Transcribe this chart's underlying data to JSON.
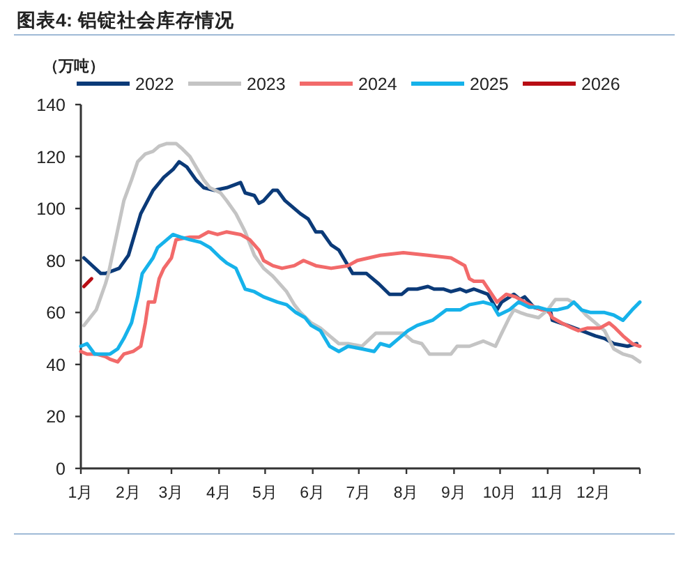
{
  "chart_data": {
    "type": "line",
    "title": "图表4: 铝锭社会库存情况",
    "ylabel": "（万吨）",
    "legend": "top",
    "ylim": [
      0,
      140
    ],
    "yticks": [
      0,
      20,
      40,
      60,
      80,
      100,
      120,
      140
    ],
    "xlim": [
      "--01-01",
      "--12-31"
    ],
    "xticks": [
      {
        "value": "--01-01",
        "label": "1月"
      },
      {
        "value": "--02-01",
        "label": "2月"
      },
      {
        "value": "--03-01",
        "label": "3月"
      },
      {
        "value": "--04-01",
        "label": "4月"
      },
      {
        "value": "--05-01",
        "label": "5月"
      },
      {
        "value": "--06-01",
        "label": "6月"
      },
      {
        "value": "--07-01",
        "label": "7月"
      },
      {
        "value": "--08-01",
        "label": "8月"
      },
      {
        "value": "--09-01",
        "label": "9月"
      },
      {
        "value": "--10-01",
        "label": "10月"
      },
      {
        "value": "--11-01",
        "label": "11月"
      },
      {
        "value": "--12-01",
        "label": "12月"
      },
      {
        "value": "--12-31",
        "label": null
      }
    ],
    "series": [
      {
        "name": "2022",
        "color": "#0b3a78",
        "x": [
          "--01-03",
          "--01-14",
          "--01-17",
          "--01-26",
          "--02-01",
          "--02-09",
          "--02-17",
          "--02-24",
          "--03-02",
          "--03-06",
          "--03-11",
          "--03-17",
          "--03-22",
          "--03-29",
          "--04-06",
          "--04-15",
          "--04-18",
          "--04-24",
          "--04-27",
          "--04-30",
          "--05-06",
          "--05-09",
          "--05-14",
          "--05-18",
          "--05-24",
          "--05-29",
          "--06-03",
          "--06-07",
          "--06-13",
          "--06-18",
          "--06-27",
          "--07-06",
          "--07-14",
          "--07-21",
          "--07-29",
          "--08-02",
          "--08-08",
          "--08-15",
          "--08-19",
          "--08-25",
          "--08-30",
          "--09-05",
          "--09-09",
          "--09-14",
          "--09-23",
          "--09-29",
          "--10-02",
          "--10-10",
          "--10-14",
          "--10-17",
          "--10-23",
          "--10-29",
          "--11-03",
          "--11-04",
          "--11-14",
          "--11-23",
          "--12-02",
          "--12-08",
          "--12-14",
          "--12-23",
          "--12-29"
        ],
        "values": [
          81,
          75,
          75,
          77,
          82,
          98,
          107,
          112,
          115,
          118,
          116,
          111,
          108,
          107,
          108,
          110,
          106,
          105,
          102,
          103,
          107,
          107,
          103,
          101,
          98,
          96,
          91,
          91,
          86,
          84,
          75,
          75,
          71,
          67,
          67,
          69,
          69,
          70,
          69,
          69,
          68,
          69,
          68,
          69,
          67,
          61,
          64,
          67,
          65,
          66,
          62,
          61,
          60,
          57,
          55,
          53,
          51,
          50,
          48,
          47,
          48
        ]
      },
      {
        "name": "2023",
        "color": "#c4c4c4",
        "x": [
          "--01-03",
          "--01-11",
          "--01-17",
          "--01-19",
          "--01-29",
          "--02-03",
          "--02-07",
          "--02-12",
          "--02-17",
          "--02-21",
          "--02-26",
          "--03-04",
          "--03-08",
          "--03-13",
          "--03-17",
          "--03-22",
          "--03-26",
          "--04-02",
          "--04-06",
          "--04-12",
          "--04-18",
          "--04-24",
          "--04-30",
          "--05-06",
          "--05-15",
          "--05-20",
          "--05-24",
          "--05-31",
          "--06-06",
          "--06-12",
          "--06-18",
          "--06-24",
          "--07-03",
          "--07-12",
          "--07-21",
          "--07-30",
          "--08-05",
          "--08-11",
          "--08-16",
          "--08-22",
          "--08-30",
          "--09-03",
          "--09-11",
          "--09-20",
          "--09-28",
          "--10-02",
          "--10-07",
          "--10-10",
          "--10-14",
          "--10-19",
          "--10-26",
          "--11-01",
          "--11-06",
          "--11-14",
          "--11-20",
          "--11-26",
          "--12-02",
          "--12-08",
          "--12-14",
          "--12-20",
          "--12-26",
          "--12-31"
        ],
        "values": [
          55,
          61,
          71,
          75,
          103,
          111,
          118,
          121,
          122,
          124,
          125,
          125,
          123,
          120,
          116,
          111,
          108,
          106,
          103,
          98,
          91,
          82,
          77,
          74,
          68,
          63,
          60,
          56,
          54,
          51,
          48,
          48,
          47,
          52,
          52,
          52,
          49,
          48,
          44,
          44,
          44,
          47,
          47,
          49,
          47,
          52,
          58,
          61,
          60,
          59,
          58,
          61,
          65,
          65,
          63,
          59,
          56,
          53,
          46,
          44,
          43,
          41
        ]
      },
      {
        "name": "2024",
        "color": "#f26a6a",
        "x": [
          "--01-01",
          "--01-05",
          "--01-11",
          "--01-17",
          "--01-20",
          "--01-25",
          "--01-29",
          "--02-04",
          "--02-09",
          "--02-12",
          "--02-14",
          "--02-18",
          "--02-21",
          "--02-24",
          "--03-01",
          "--03-04",
          "--03-13",
          "--03-19",
          "--03-25",
          "--03-31",
          "--04-06",
          "--04-15",
          "--04-21",
          "--04-27",
          "--04-30",
          "--05-06",
          "--05-12",
          "--05-20",
          "--05-26",
          "--06-03",
          "--06-13",
          "--06-24",
          "--06-30",
          "--07-15",
          "--07-30",
          "--08-15",
          "--08-30",
          "--09-08",
          "--09-11",
          "--09-14",
          "--09-20",
          "--09-29",
          "--10-05",
          "--10-11",
          "--10-20",
          "--10-28",
          "--11-01",
          "--11-04",
          "--11-10",
          "--11-17",
          "--11-21",
          "--11-27",
          "--12-05",
          "--12-11",
          "--12-15",
          "--12-20",
          "--12-26",
          "--12-31"
        ],
        "values": [
          45,
          44,
          44,
          43,
          42,
          41,
          44,
          45,
          47,
          56,
          64,
          64,
          73,
          77,
          81,
          88,
          89,
          89,
          91,
          90,
          91,
          90,
          88,
          84,
          80,
          78,
          77,
          78,
          80,
          78,
          77,
          78,
          80,
          82,
          83,
          82,
          81,
          78,
          73,
          72,
          72,
          64,
          67,
          66,
          63,
          61,
          61,
          58,
          56,
          54,
          53,
          54,
          54,
          56,
          54,
          51,
          48,
          47
        ]
      },
      {
        "name": "2025",
        "color": "#16b2ea",
        "x": [
          "--01-01",
          "--01-05",
          "--01-10",
          "--01-16",
          "--01-20",
          "--01-25",
          "--01-29",
          "--02-03",
          "--02-07",
          "--02-10",
          "--02-17",
          "--02-20",
          "--02-26",
          "--03-02",
          "--03-07",
          "--03-13",
          "--03-20",
          "--03-26",
          "--04-02",
          "--04-06",
          "--04-12",
          "--04-18",
          "--04-24",
          "--04-30",
          "--05-09",
          "--05-15",
          "--05-21",
          "--05-27",
          "--05-31",
          "--06-06",
          "--06-12",
          "--06-18",
          "--06-24",
          "--07-03",
          "--07-11",
          "--07-15",
          "--07-21",
          "--07-27",
          "--08-02",
          "--08-08",
          "--08-18",
          "--08-27",
          "--09-05",
          "--09-11",
          "--09-20",
          "--09-26",
          "--09-30",
          "--10-07",
          "--10-13",
          "--10-20",
          "--10-26",
          "--11-01",
          "--11-07",
          "--11-14",
          "--11-18",
          "--11-23",
          "--11-29",
          "--12-08",
          "--12-14",
          "--12-20",
          "--12-26",
          "--12-31"
        ],
        "values": [
          47,
          48,
          44,
          44,
          44,
          46,
          50,
          56,
          66,
          75,
          81,
          85,
          88,
          90,
          89,
          88,
          87,
          85,
          81,
          79,
          77,
          69,
          68,
          66,
          64,
          63,
          60,
          58,
          55,
          53,
          47,
          45,
          47,
          46,
          45,
          48,
          47,
          50,
          53,
          55,
          57,
          61,
          61,
          63,
          64,
          63,
          59,
          61,
          64,
          62,
          62,
          61,
          61,
          62,
          64,
          61,
          60,
          60,
          59,
          57,
          61,
          64
        ]
      },
      {
        "name": "2026",
        "color": "#b80d14",
        "x": [
          "--01-03",
          "--01-08"
        ],
        "values": [
          70,
          73
        ]
      }
    ]
  }
}
